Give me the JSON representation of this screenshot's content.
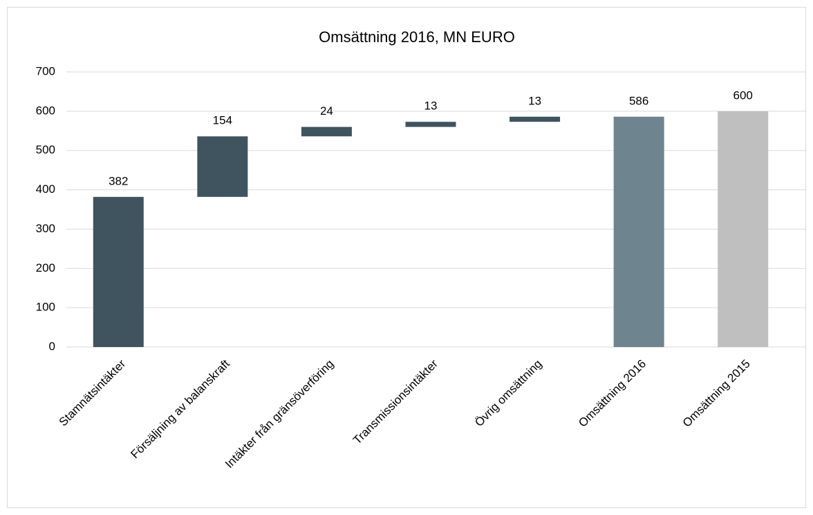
{
  "chart_data": {
    "type": "waterfall",
    "title": "Omsättning 2016, MN EURO",
    "categories": [
      "Stamnätsintäkter",
      "Försäljning av balanskraft",
      "Intäkter från gränsöverföring",
      "Transmissionsintäkter",
      "Övrig omsättning",
      "Omsättning 2016",
      "Omsättning 2015"
    ],
    "values": [
      382,
      154,
      24,
      13,
      13,
      586,
      600
    ],
    "measure": [
      "relative",
      "relative",
      "relative",
      "relative",
      "relative",
      "total",
      "total"
    ],
    "colors": [
      "#3f545e",
      "#3f545e",
      "#3f545e",
      "#3f545e",
      "#3f545e",
      "#6e8590",
      "#bfbfbf"
    ],
    "ylim": [
      0,
      700
    ],
    "yticks": [
      0,
      100,
      200,
      300,
      400,
      500,
      600,
      700
    ],
    "grid": true
  }
}
